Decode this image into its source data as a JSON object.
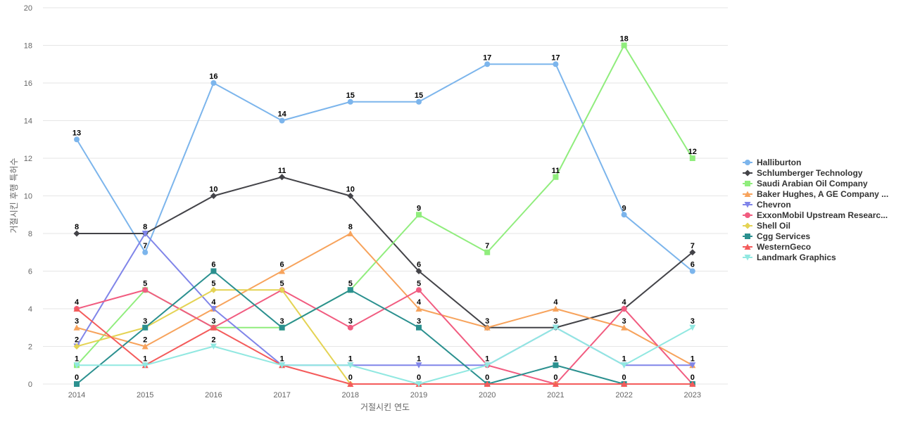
{
  "chart_data": {
    "type": "line",
    "title": "",
    "xlabel": "거절시킨 연도",
    "ylabel": "거절시킨 후행 특허수",
    "ylim": [
      0,
      20
    ],
    "yticks": [
      0,
      2,
      4,
      6,
      8,
      10,
      12,
      14,
      16,
      18,
      20
    ],
    "x": [
      "2014",
      "2015",
      "2016",
      "2017",
      "2018",
      "2019",
      "2020",
      "2021",
      "2022",
      "2023"
    ],
    "grid": true,
    "legend_position": "right",
    "series": [
      {
        "name": "Halliburton",
        "color": "#7cb5ec",
        "marker": "circle",
        "values": [
          13,
          7,
          16,
          14,
          15,
          15,
          17,
          17,
          9,
          6
        ]
      },
      {
        "name": "Schlumberger Technology",
        "color": "#434348",
        "marker": "diamond",
        "values": [
          8,
          8,
          10,
          11,
          10,
          6,
          3,
          3,
          4,
          7
        ]
      },
      {
        "name": "Saudi Arabian Oil Company",
        "color": "#90ed7d",
        "marker": "square",
        "values": [
          1,
          5,
          3,
          3,
          5,
          9,
          7,
          11,
          18,
          12
        ]
      },
      {
        "name": "Baker Hughes, A GE Company ...",
        "color": "#f7a35c",
        "marker": "triangle",
        "values": [
          3,
          2,
          4,
          6,
          8,
          4,
          3,
          4,
          3,
          1
        ]
      },
      {
        "name": "Chevron",
        "color": "#8085e9",
        "marker": "triangle-down",
        "values": [
          2,
          8,
          4,
          1,
          1,
          1,
          1,
          3,
          1,
          1
        ]
      },
      {
        "name": "ExxonMobil Upstream Researc...",
        "color": "#f15c80",
        "marker": "circle",
        "values": [
          4,
          5,
          3,
          5,
          3,
          5,
          1,
          0,
          4,
          0
        ]
      },
      {
        "name": "Shell Oil",
        "color": "#e4d354",
        "marker": "diamond",
        "values": [
          2,
          3,
          5,
          5,
          0,
          0,
          0,
          0,
          0,
          0
        ]
      },
      {
        "name": "Cgg Services",
        "color": "#2b908f",
        "marker": "square",
        "values": [
          0,
          3,
          6,
          3,
          5,
          3,
          0,
          1,
          0,
          0
        ]
      },
      {
        "name": "WesternGeco",
        "color": "#f45b5b",
        "marker": "triangle",
        "values": [
          4,
          1,
          3,
          1,
          0,
          0,
          0,
          0,
          0,
          0
        ]
      },
      {
        "name": "Landmark Graphics",
        "color": "#91e8e1",
        "marker": "triangle-down",
        "values": [
          1,
          1,
          2,
          1,
          1,
          0,
          1,
          3,
          1,
          3
        ]
      }
    ],
    "data_labels": [
      {
        "x": "2014",
        "y": 13,
        "text": "13"
      },
      {
        "x": "2014",
        "y": 8,
        "text": "8"
      },
      {
        "x": "2014",
        "y": 4,
        "text": "4"
      },
      {
        "x": "2014",
        "y": 3,
        "text": "3"
      },
      {
        "x": "2014",
        "y": 2,
        "text": "2"
      },
      {
        "x": "2014",
        "y": 1,
        "text": "1"
      },
      {
        "x": "2014",
        "y": 0,
        "text": "0"
      },
      {
        "x": "2015",
        "y": 8,
        "text": "8"
      },
      {
        "x": "2015",
        "y": 7,
        "text": "7"
      },
      {
        "x": "2015",
        "y": 5,
        "text": "5"
      },
      {
        "x": "2015",
        "y": 3,
        "text": "3"
      },
      {
        "x": "2015",
        "y": 2,
        "text": "2"
      },
      {
        "x": "2015",
        "y": 1,
        "text": "1"
      },
      {
        "x": "2016",
        "y": 16,
        "text": "16"
      },
      {
        "x": "2016",
        "y": 10,
        "text": "10"
      },
      {
        "x": "2016",
        "y": 6,
        "text": "6"
      },
      {
        "x": "2016",
        "y": 5,
        "text": "5"
      },
      {
        "x": "2016",
        "y": 4,
        "text": "4"
      },
      {
        "x": "2016",
        "y": 3,
        "text": "3"
      },
      {
        "x": "2016",
        "y": 2,
        "text": "2"
      },
      {
        "x": "2017",
        "y": 14,
        "text": "14"
      },
      {
        "x": "2017",
        "y": 11,
        "text": "11"
      },
      {
        "x": "2017",
        "y": 6,
        "text": "6"
      },
      {
        "x": "2017",
        "y": 5,
        "text": "5"
      },
      {
        "x": "2017",
        "y": 3,
        "text": "3"
      },
      {
        "x": "2017",
        "y": 1,
        "text": "1"
      },
      {
        "x": "2018",
        "y": 15,
        "text": "15"
      },
      {
        "x": "2018",
        "y": 10,
        "text": "10"
      },
      {
        "x": "2018",
        "y": 8,
        "text": "8"
      },
      {
        "x": "2018",
        "y": 5,
        "text": "5"
      },
      {
        "x": "2018",
        "y": 3,
        "text": "3"
      },
      {
        "x": "2018",
        "y": 1,
        "text": "1"
      },
      {
        "x": "2018",
        "y": 0,
        "text": "0"
      },
      {
        "x": "2019",
        "y": 15,
        "text": "15"
      },
      {
        "x": "2019",
        "y": 9,
        "text": "9"
      },
      {
        "x": "2019",
        "y": 6,
        "text": "6"
      },
      {
        "x": "2019",
        "y": 5,
        "text": "5"
      },
      {
        "x": "2019",
        "y": 4,
        "text": "4"
      },
      {
        "x": "2019",
        "y": 3,
        "text": "3"
      },
      {
        "x": "2019",
        "y": 1,
        "text": "1"
      },
      {
        "x": "2019",
        "y": 0,
        "text": "0"
      },
      {
        "x": "2020",
        "y": 17,
        "text": "17"
      },
      {
        "x": "2020",
        "y": 7,
        "text": "7"
      },
      {
        "x": "2020",
        "y": 3,
        "text": "3"
      },
      {
        "x": "2020",
        "y": 1,
        "text": "1"
      },
      {
        "x": "2020",
        "y": 0,
        "text": "0"
      },
      {
        "x": "2021",
        "y": 17,
        "text": "17"
      },
      {
        "x": "2021",
        "y": 11,
        "text": "11"
      },
      {
        "x": "2021",
        "y": 4,
        "text": "4"
      },
      {
        "x": "2021",
        "y": 3,
        "text": "3"
      },
      {
        "x": "2021",
        "y": 1,
        "text": "1"
      },
      {
        "x": "2021",
        "y": 0,
        "text": "0"
      },
      {
        "x": "2022",
        "y": 18,
        "text": "18"
      },
      {
        "x": "2022",
        "y": 9,
        "text": "9"
      },
      {
        "x": "2022",
        "y": 4,
        "text": "4"
      },
      {
        "x": "2022",
        "y": 3,
        "text": "3"
      },
      {
        "x": "2022",
        "y": 1,
        "text": "1"
      },
      {
        "x": "2022",
        "y": 0,
        "text": "0"
      },
      {
        "x": "2023",
        "y": 12,
        "text": "12"
      },
      {
        "x": "2023",
        "y": 7,
        "text": "7"
      },
      {
        "x": "2023",
        "y": 6,
        "text": "6"
      },
      {
        "x": "2023",
        "y": 3,
        "text": "3"
      },
      {
        "x": "2023",
        "y": 1,
        "text": "1"
      },
      {
        "x": "2023",
        "y": 0,
        "text": "0"
      }
    ]
  }
}
